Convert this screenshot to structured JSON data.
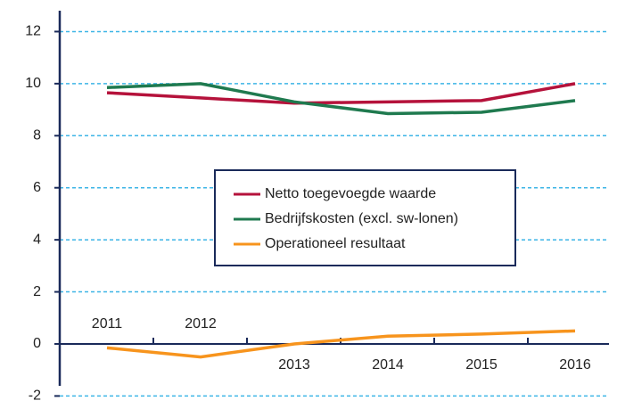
{
  "chart_data": {
    "type": "line",
    "categories": [
      "2011",
      "2012",
      "2013",
      "2014",
      "2015",
      "2016"
    ],
    "series": [
      {
        "name": "Netto toegevoegde waarde",
        "color": "#b5123b",
        "values": [
          9.65,
          9.45,
          9.25,
          9.3,
          9.35,
          10.0
        ]
      },
      {
        "name": "Bedrijfskosten (excl. sw-lonen)",
        "color": "#1f7a4f",
        "values": [
          9.85,
          10.0,
          9.3,
          8.85,
          8.9,
          9.35
        ]
      },
      {
        "name": "Operationeel resultaat",
        "color": "#f7941d",
        "values": [
          -0.15,
          -0.5,
          0.0,
          0.3,
          0.38,
          0.5
        ]
      }
    ],
    "ylim": [
      -2.5,
      12.7
    ],
    "yticks": [
      -2,
      0,
      2,
      4,
      6,
      8,
      10,
      12
    ],
    "grid": true,
    "legend": "center"
  }
}
